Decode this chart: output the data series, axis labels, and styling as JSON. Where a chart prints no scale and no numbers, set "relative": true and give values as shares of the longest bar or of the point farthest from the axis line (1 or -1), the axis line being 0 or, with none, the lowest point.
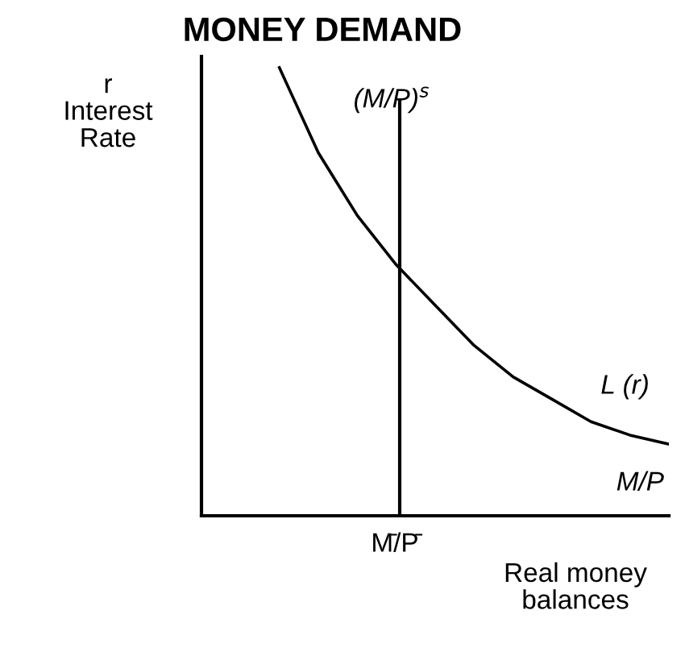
{
  "chart_data": {
    "type": "line",
    "title": "MONEY DEMAND",
    "relative": true,
    "categories": [
      null,
      null,
      null,
      null,
      null,
      null,
      null,
      null,
      null,
      null,
      null,
      null,
      null
    ],
    "series": [
      {
        "name": "L (r)",
        "color": "#000000",
        "values": [
          null,
          null,
          1,
          0.81,
          0.67,
          0.56,
          0.47,
          0.38,
          0.31,
          0.26,
          0.21,
          0.18,
          0.16
        ]
      }
    ],
    "xlabel": "M/P",
    "ylabel": "r\nInterest\nRate",
    "annotations": [
      "Real money\nbalances",
      "M̄/P̄",
      "(M/P)$^{s}$"
    ],
    "grid": false,
    "legend": false,
    "marker": "none",
    "line_style": "solid"
  }
}
